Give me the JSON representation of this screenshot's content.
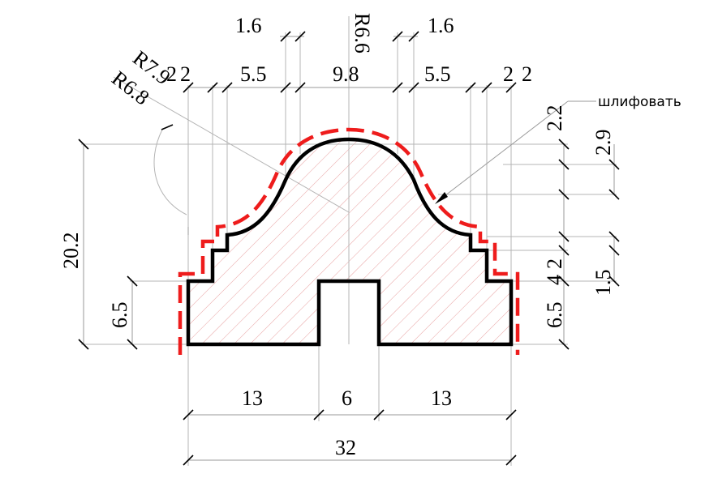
{
  "colors": {
    "profile": "#000000",
    "cut_line": "#ee1c1c",
    "hatch": "#e8a0a0",
    "guide": "#b4b4b4"
  },
  "dimensions": {
    "top_left_1_6": "1.6",
    "top_right_1_6": "1.6",
    "radius_center": "R6.6",
    "radius_7_9": "R7.9",
    "radius_6_8": "R6.8",
    "left_2": "2",
    "left_2b": "2",
    "left_5_5": "5.5",
    "center_9_8": "9.8",
    "right_5_5": "5.5",
    "right_2": "2",
    "right_2b": "2",
    "right_2_2": "2.2",
    "right_2_9": "2.9",
    "right_4": "4",
    "right_2_step": "2",
    "right_1_5": "1.5",
    "right_6_5": "6.5",
    "left_20_2": "20.2",
    "left_6_5": "6.5",
    "bottom_13_left": "13",
    "bottom_6": "6",
    "bottom_13_right": "13",
    "bottom_32": "32"
  },
  "annotation": {
    "text": "шлифовать"
  }
}
